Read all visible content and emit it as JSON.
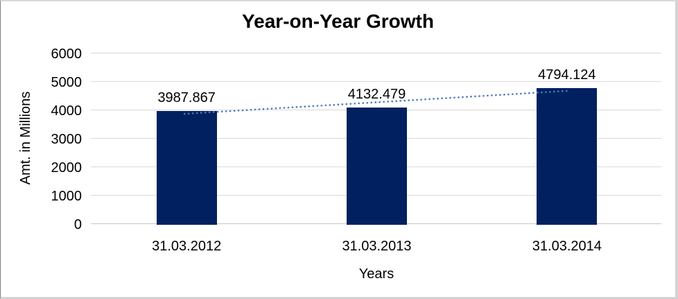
{
  "chart_data": {
    "type": "bar",
    "title": "Year-on-Year Growth",
    "xlabel": "Years",
    "ylabel": "Amt. in Millions",
    "categories": [
      "31.03.2012",
      "31.03.2013",
      "31.03.2014"
    ],
    "values": [
      3987.867,
      4132.479,
      4794.124
    ],
    "data_labels": [
      "3987.867",
      "4132.479",
      "4794.124"
    ],
    "ylim": [
      0,
      6000
    ],
    "yticks": [
      0,
      1000,
      2000,
      3000,
      4000,
      5000,
      6000
    ],
    "grid": "horizontal",
    "legend": "none",
    "trendline": {
      "type": "linear",
      "style": "dotted"
    },
    "colors": {
      "bar": "#002060",
      "trendline": "#4a7ebb",
      "gridline": "#d9d9d9",
      "axis_line": "#c6c6c6",
      "text": "#000000",
      "background": "#ffffff",
      "frame_border": "#d3d3d3"
    }
  }
}
